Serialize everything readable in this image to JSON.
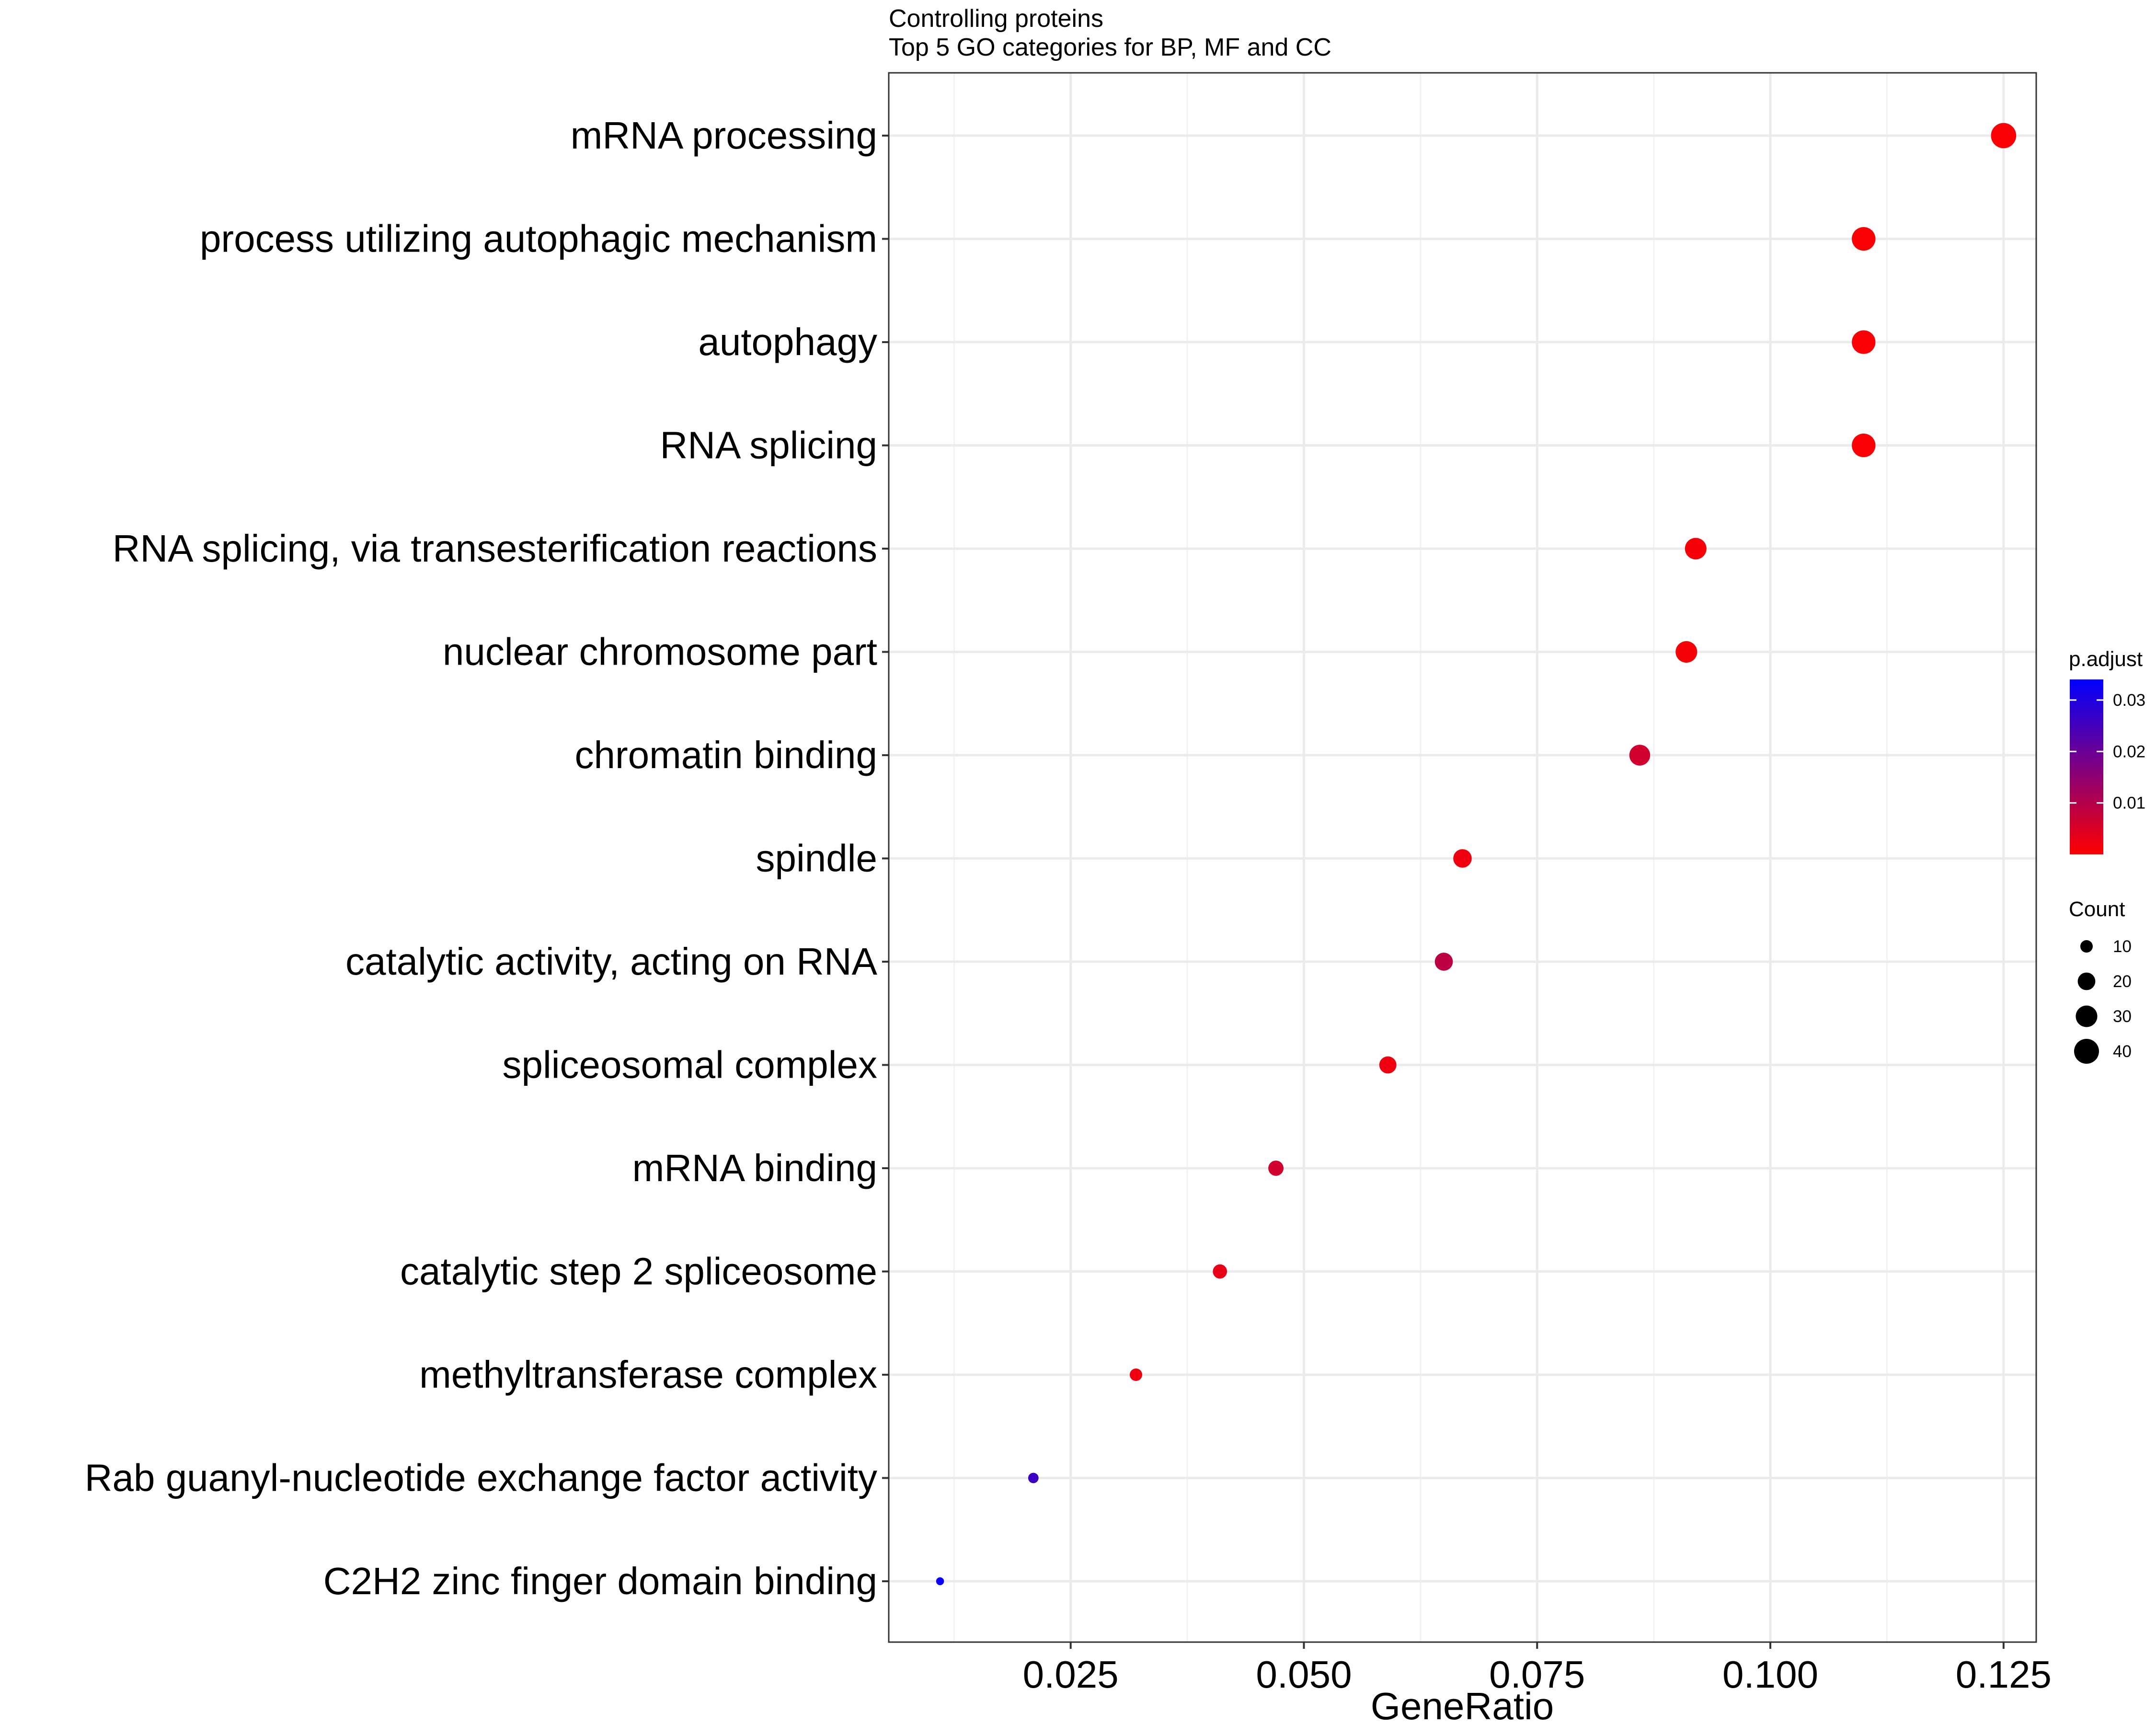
{
  "chart_data": {
    "type": "scatter",
    "title": "Controlling proteins",
    "subtitle": "Top 5 GO categories for BP, MF and CC",
    "xlabel": "GeneRatio",
    "ylabel": "",
    "xlim": [
      0.0055,
      0.1285
    ],
    "x_ticks": [
      0.025,
      0.05,
      0.075,
      0.1,
      0.125
    ],
    "x_tick_labels": [
      "0.025",
      "0.050",
      "0.075",
      "0.100",
      "0.125"
    ],
    "grid": true,
    "categories": [
      "mRNA processing",
      "process utilizing autophagic mechanism",
      "autophagy",
      "RNA splicing",
      "RNA splicing, via transesterification reactions",
      "nuclear chromosome part",
      "chromatin binding",
      "spindle",
      "catalytic activity, acting on RNA",
      "spliceosomal complex",
      "mRNA binding",
      "catalytic step 2 spliceosome",
      "methyltransferase complex",
      "Rab guanyl-nucleotide exchange factor activity",
      "C2H2 zinc finger domain binding"
    ],
    "points": [
      {
        "term": "mRNA processing",
        "gene_ratio": 0.125,
        "count": 41,
        "p_adjust": 0.0005
      },
      {
        "term": "process utilizing autophagic mechanism",
        "gene_ratio": 0.11,
        "count": 36,
        "p_adjust": 0.0005
      },
      {
        "term": "autophagy",
        "gene_ratio": 0.11,
        "count": 36,
        "p_adjust": 0.0005
      },
      {
        "term": "RNA splicing",
        "gene_ratio": 0.11,
        "count": 36,
        "p_adjust": 0.0005
      },
      {
        "term": "RNA splicing, via transesterification reactions",
        "gene_ratio": 0.092,
        "count": 30,
        "p_adjust": 0.001
      },
      {
        "term": "nuclear chromosome part",
        "gene_ratio": 0.091,
        "count": 30,
        "p_adjust": 0.001
      },
      {
        "term": "chromatin binding",
        "gene_ratio": 0.086,
        "count": 28,
        "p_adjust": 0.006
      },
      {
        "term": "spindle",
        "gene_ratio": 0.067,
        "count": 22,
        "p_adjust": 0.002
      },
      {
        "term": "catalytic activity, acting on RNA",
        "gene_ratio": 0.065,
        "count": 21,
        "p_adjust": 0.009
      },
      {
        "term": "spliceosomal complex",
        "gene_ratio": 0.059,
        "count": 19,
        "p_adjust": 0.002
      },
      {
        "term": "mRNA binding",
        "gene_ratio": 0.047,
        "count": 15,
        "p_adjust": 0.006
      },
      {
        "term": "catalytic step 2 spliceosome",
        "gene_ratio": 0.041,
        "count": 13,
        "p_adjust": 0.003
      },
      {
        "term": "methyltransferase complex",
        "gene_ratio": 0.032,
        "count": 10,
        "p_adjust": 0.002
      },
      {
        "term": "Rab guanyl-nucleotide exchange factor activity",
        "gene_ratio": 0.021,
        "count": 7,
        "p_adjust": 0.026
      },
      {
        "term": "C2H2 zinc finger domain binding",
        "gene_ratio": 0.011,
        "count": 4,
        "p_adjust": 0.033
      }
    ],
    "color_legend": {
      "title": "p.adjust",
      "range": [
        0,
        0.034
      ],
      "ticks": [
        0.01,
        0.02,
        0.03
      ],
      "tick_labels": [
        "0.01",
        "0.02",
        "0.03"
      ],
      "low_color": "#ff0000",
      "high_color": "#0000ff"
    },
    "size_legend": {
      "title": "Count",
      "values": [
        10,
        20,
        30,
        40
      ],
      "labels": [
        "10",
        "20",
        "30",
        "40"
      ]
    },
    "point_color_scale": [
      "#ff0000",
      "#0000ff"
    ],
    "legend_position": "right"
  }
}
